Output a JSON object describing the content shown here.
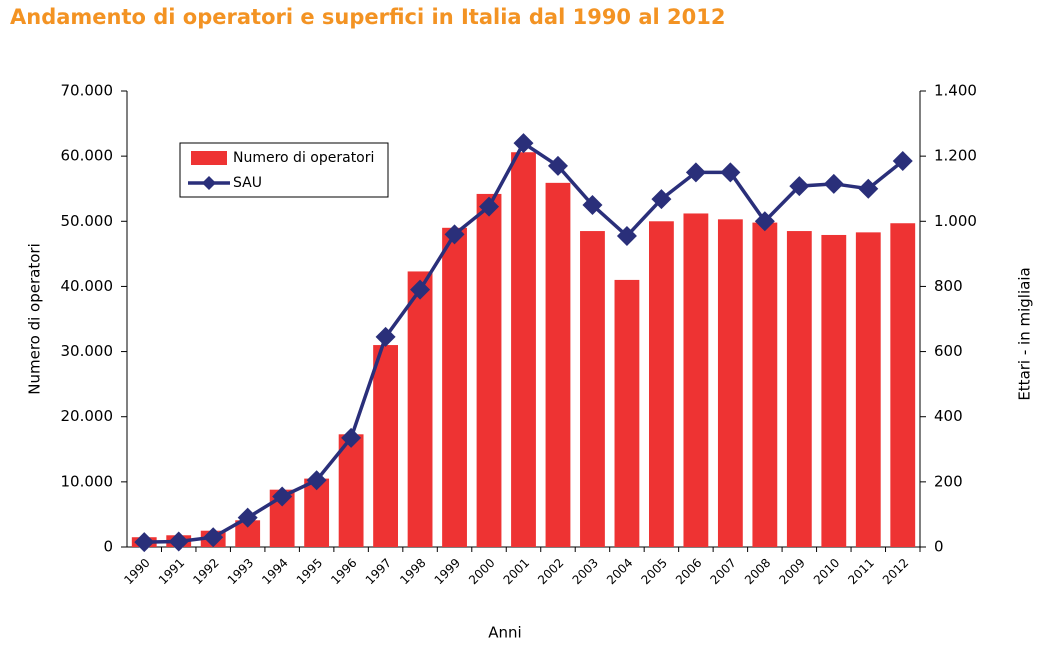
{
  "chart_data": {
    "type": "bar-line",
    "title": "Andamento di operatori e superfici in Italia dal 1990 al 2012",
    "x_label": "Anni",
    "y_label": "Numero di operatori",
    "y2_label": "Ettari - in migliaia",
    "categories": [
      "1990",
      "1991",
      "1992",
      "1993",
      "1994",
      "1995",
      "1996",
      "1997",
      "1998",
      "1999",
      "2000",
      "2001",
      "2002",
      "2003",
      "2004",
      "2005",
      "2006",
      "2007",
      "2008",
      "2009",
      "2010",
      "2011",
      "2012"
    ],
    "series": [
      {
        "name": "Numero di operatori",
        "type": "bar",
        "color": "#ee3333",
        "values": [
          1500,
          1800,
          2500,
          4100,
          8800,
          10500,
          17300,
          31000,
          42300,
          49000,
          54200,
          60600,
          55900,
          48500,
          41000,
          50000,
          51200,
          50300,
          49800,
          48500,
          47900,
          48300,
          49700
        ]
      },
      {
        "name": "SAU",
        "type": "line",
        "axis": "y2",
        "color": "#2a2f7a",
        "values": [
          15,
          17,
          30,
          90,
          155,
          205,
          335,
          645,
          790,
          960,
          1045,
          1240,
          1170,
          1050,
          955,
          1068,
          1150,
          1150,
          1000,
          1108,
          1115,
          1100,
          1185
        ]
      }
    ],
    "ylim": [
      0,
      70000
    ],
    "yticks": [
      0,
      {
        "value": 10000,
        "label": "10.000"
      },
      {
        "value": 20000,
        "label": "20.000"
      },
      {
        "value": 30000,
        "label": "30.000"
      },
      {
        "value": 40000,
        "label": "40.000"
      },
      {
        "value": 50000,
        "label": "50.000"
      },
      {
        "value": 60000,
        "label": "60.000"
      },
      {
        "value": 70000,
        "label": "70.000"
      }
    ],
    "y2lim": [
      0,
      1400
    ],
    "y2ticks": [
      0,
      200,
      400,
      600,
      800,
      {
        "value": 1000,
        "label": "1.000"
      },
      {
        "value": 1200,
        "label": "1.200"
      },
      {
        "value": 1400,
        "label": "1.400"
      }
    ],
    "legend": "upper-left"
  }
}
